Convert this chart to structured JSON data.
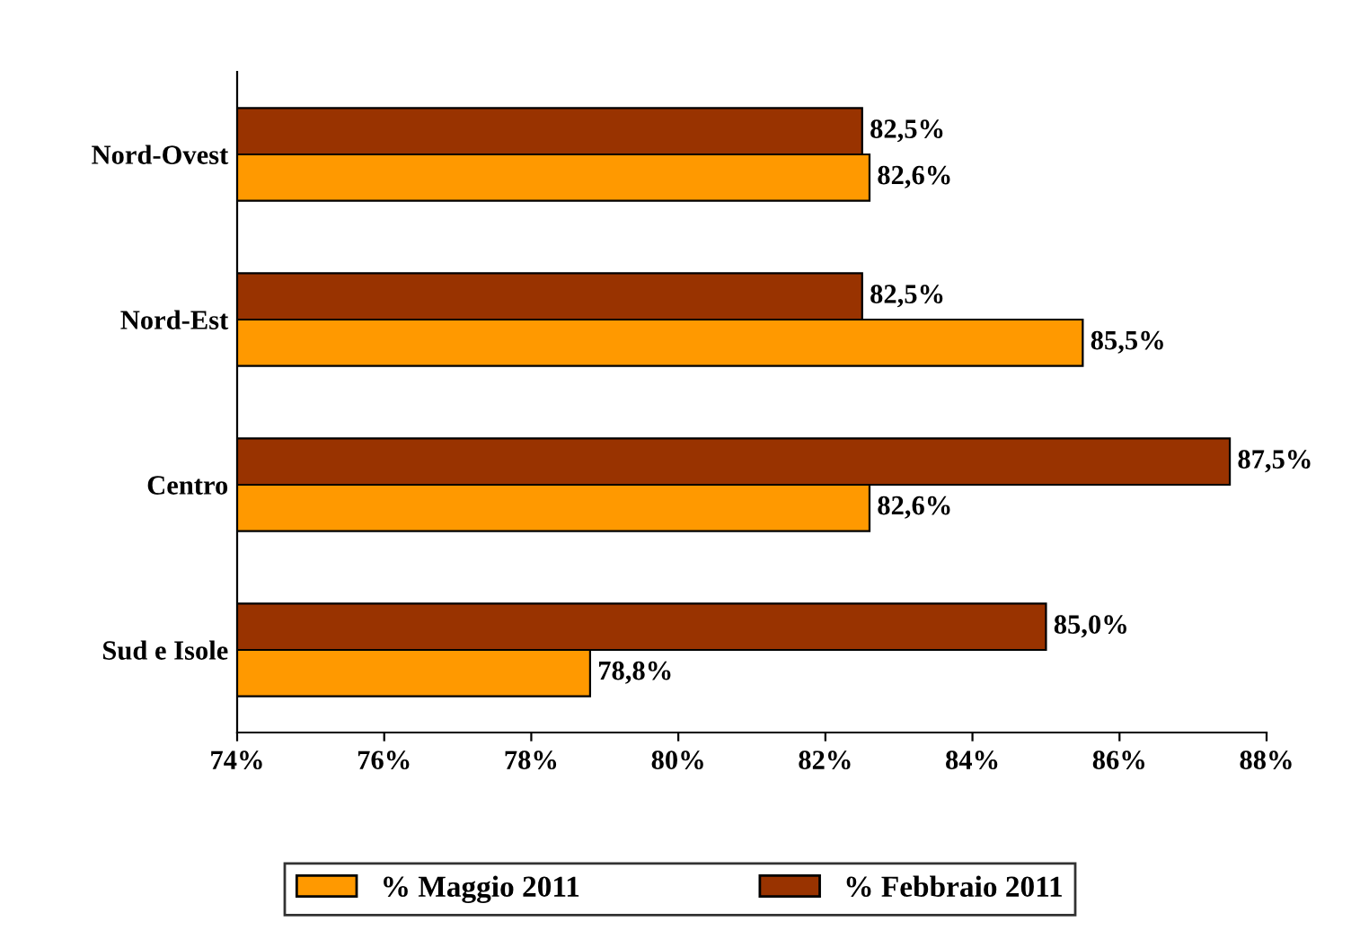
{
  "chart_data": {
    "type": "bar",
    "orientation": "horizontal",
    "categories": [
      "Nord-Ovest",
      "Nord-Est",
      "Centro",
      "Sud e Isole"
    ],
    "series": [
      {
        "name": "% Maggio 2011",
        "color": "#ff9900",
        "values": [
          82.6,
          85.5,
          82.6,
          78.8
        ],
        "value_labels": [
          "82,6%",
          "85,5%",
          "82,6%",
          "78,8%"
        ]
      },
      {
        "name": "% Febbraio 2011",
        "color": "#993300",
        "values": [
          82.5,
          82.5,
          87.5,
          85.0
        ],
        "value_labels": [
          "82,5%",
          "82,5%",
          "87,5%",
          "85,0%"
        ]
      }
    ],
    "xlim": [
      74,
      88
    ],
    "xticks": [
      {
        "value": 74,
        "label": "74%"
      },
      {
        "value": 76,
        "label": "76%"
      },
      {
        "value": 78,
        "label": "78%"
      },
      {
        "value": 80,
        "label": "80%"
      },
      {
        "value": 82,
        "label": "82%"
      },
      {
        "value": 84,
        "label": "84%"
      },
      {
        "value": 86,
        "label": "86%"
      },
      {
        "value": 88,
        "label": "88%"
      }
    ],
    "grid": false,
    "legend": "bottom"
  }
}
